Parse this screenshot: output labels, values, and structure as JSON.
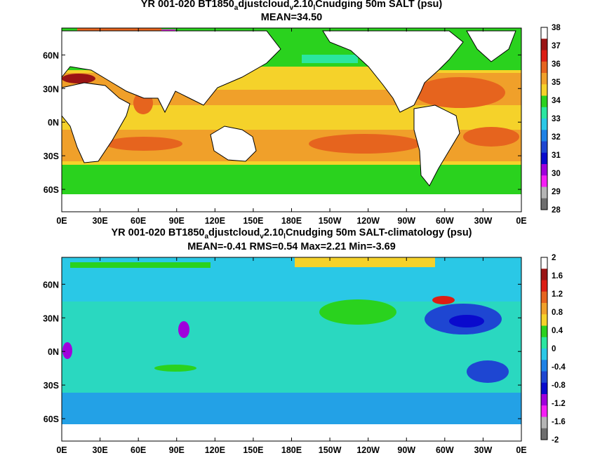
{
  "chart_data": [
    {
      "type": "heatmap",
      "title_main": "YR 001-020 BT1850",
      "title_sub1": "a",
      "title_mid": "djustcloud",
      "title_sub2": "v",
      "title_mid2": "2.10",
      "title_sub3": "l",
      "title_end": "Cnudging 50m SALT (psu)",
      "stats": "MEAN=34.50",
      "x_ticks": [
        "0E",
        "30E",
        "60E",
        "90E",
        "120E",
        "150E",
        "180E",
        "150W",
        "120W",
        "90W",
        "60W",
        "30W",
        "0E"
      ],
      "y_ticks": [
        "60N",
        "30N",
        "0N",
        "30S",
        "60S"
      ],
      "y_tick_values": [
        60,
        30,
        0,
        -30,
        -60
      ],
      "ylim": [
        -80,
        84
      ],
      "colorbar_labels": [
        "38",
        "37",
        "36",
        "35",
        "34",
        "33",
        "32",
        "31",
        "30",
        "29",
        "28"
      ],
      "colorbar_colors": [
        "#ffffff",
        "#9a1414",
        "#dc1e14",
        "#e6641e",
        "#f0a02a",
        "#f5d22a",
        "#2ad21e",
        "#2ae6a0",
        "#2ac8e6",
        "#1e82e6",
        "#1e46d2",
        "#0a0acd",
        "#a000dc",
        "#f51ef5",
        "#b4b4b4",
        "#6e6e6e"
      ],
      "mean": 34.5
    },
    {
      "type": "heatmap",
      "title_main": "YR 001-020 BT1850",
      "title_sub1": "a",
      "title_mid": "djustcloud",
      "title_sub2": "v",
      "title_mid2": "2.10",
      "title_sub3": "l",
      "title_end": "Cnudging 50m SALT-climatology (psu)",
      "stats": "MEAN=-0.41   RMS=0.54   Max=2.21   Min=-3.69",
      "x_ticks": [
        "0E",
        "30E",
        "60E",
        "90E",
        "120E",
        "150E",
        "180E",
        "150W",
        "120W",
        "90W",
        "60W",
        "30W",
        "0E"
      ],
      "y_ticks": [
        "60N",
        "30N",
        "0N",
        "30S",
        "60S"
      ],
      "y_tick_values": [
        60,
        30,
        0,
        -30,
        -60
      ],
      "ylim": [
        -80,
        84
      ],
      "colorbar_labels": [
        "2",
        "1.6",
        "1.2",
        "0.8",
        "0.4",
        "0",
        "-0.4",
        "-0.8",
        "-1.2",
        "-1.6",
        "-2"
      ],
      "colorbar_colors": [
        "#ffffff",
        "#9a1414",
        "#dc1e14",
        "#e6641e",
        "#f0a02a",
        "#f5d22a",
        "#2ad21e",
        "#2ae6a0",
        "#2ac8e6",
        "#1e82e6",
        "#1e46d2",
        "#0a0acd",
        "#a000dc",
        "#f51ef5",
        "#b4b4b4",
        "#6e6e6e"
      ],
      "mean": -0.41,
      "rms": 0.54,
      "max": 2.21,
      "min": -3.69
    }
  ]
}
